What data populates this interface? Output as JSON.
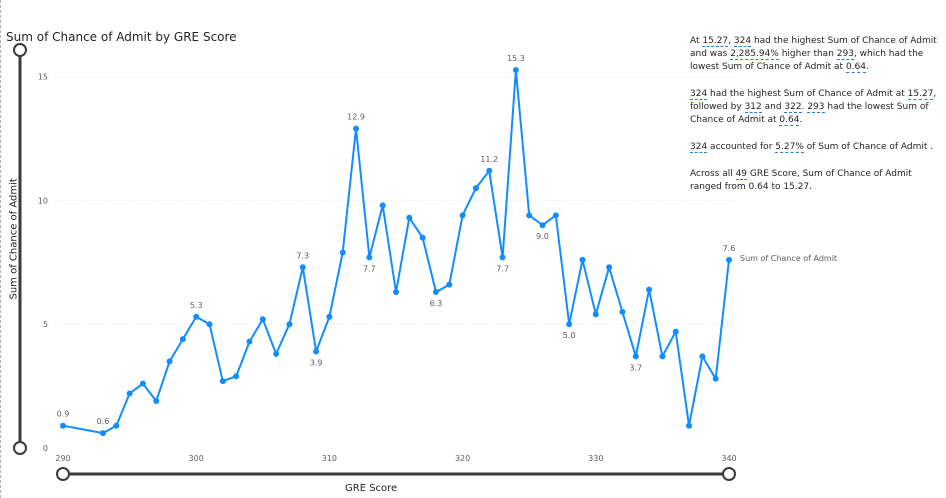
{
  "chart_data": {
    "type": "line",
    "title": "Sum of Chance of Admit by GRE Score",
    "xlabel": "GRE Score",
    "ylabel": "Sum of Chance of Admit",
    "xlim": [
      290,
      340
    ],
    "ylim": [
      0,
      16.2
    ],
    "xticks": [
      "290",
      "300",
      "310",
      "320",
      "330",
      "340"
    ],
    "yticks": [
      "0",
      "5",
      "10",
      "15"
    ],
    "grid": true,
    "series": [
      {
        "name": "Sum of Chance of Admit",
        "color": "#118DFF",
        "points": [
          [
            290,
            0.9
          ],
          [
            293,
            0.6
          ],
          [
            294,
            0.9
          ],
          [
            295,
            2.2
          ],
          [
            296,
            2.6
          ],
          [
            297,
            1.9
          ],
          [
            298,
            3.5
          ],
          [
            299,
            4.4
          ],
          [
            300,
            5.3
          ],
          [
            301,
            5.0
          ],
          [
            302,
            2.7
          ],
          [
            303,
            2.9
          ],
          [
            304,
            4.3
          ],
          [
            305,
            5.2
          ],
          [
            306,
            3.8
          ],
          [
            307,
            5.0
          ],
          [
            308,
            7.3
          ],
          [
            309,
            3.9
          ],
          [
            310,
            5.3
          ],
          [
            311,
            7.9
          ],
          [
            312,
            12.9
          ],
          [
            313,
            7.7
          ],
          [
            314,
            9.8
          ],
          [
            315,
            6.3
          ],
          [
            316,
            9.3
          ],
          [
            317,
            8.5
          ],
          [
            318,
            6.3
          ],
          [
            319,
            6.6
          ],
          [
            320,
            9.4
          ],
          [
            321,
            10.5
          ],
          [
            322,
            11.2
          ],
          [
            323,
            7.7
          ],
          [
            324,
            15.27
          ],
          [
            325,
            9.4
          ],
          [
            326,
            9.0
          ],
          [
            327,
            9.4
          ],
          [
            328,
            5.0
          ],
          [
            329,
            7.6
          ],
          [
            330,
            5.4
          ],
          [
            331,
            7.3
          ],
          [
            332,
            5.5
          ],
          [
            333,
            3.7
          ],
          [
            334,
            6.4
          ],
          [
            335,
            3.7
          ],
          [
            336,
            4.7
          ],
          [
            337,
            0.9
          ],
          [
            338,
            3.7
          ],
          [
            339,
            2.8
          ],
          [
            340,
            7.6
          ]
        ]
      }
    ],
    "data_labels": [
      {
        "x": 290,
        "y": 0.9,
        "text": "0.9",
        "pos": "above"
      },
      {
        "x": 293,
        "y": 0.6,
        "text": "0.6",
        "pos": "above"
      },
      {
        "x": 300,
        "y": 5.3,
        "text": "5.3",
        "pos": "above"
      },
      {
        "x": 308,
        "y": 7.3,
        "text": "7.3",
        "pos": "above"
      },
      {
        "x": 309,
        "y": 3.9,
        "text": "3.9",
        "pos": "below"
      },
      {
        "x": 312,
        "y": 12.9,
        "text": "12.9",
        "pos": "above"
      },
      {
        "x": 313,
        "y": 7.7,
        "text": "7.7",
        "pos": "below"
      },
      {
        "x": 318,
        "y": 6.3,
        "text": "6.3",
        "pos": "below"
      },
      {
        "x": 322,
        "y": 11.2,
        "text": "11.2",
        "pos": "above"
      },
      {
        "x": 323,
        "y": 7.7,
        "text": "7.7",
        "pos": "below"
      },
      {
        "x": 324,
        "y": 15.27,
        "text": "15.3",
        "pos": "above"
      },
      {
        "x": 326,
        "y": 9.0,
        "text": "9.0",
        "pos": "below"
      },
      {
        "x": 328,
        "y": 5.0,
        "text": "5.0",
        "pos": "below"
      },
      {
        "x": 333,
        "y": 3.7,
        "text": "3.7",
        "pos": "below"
      },
      {
        "x": 340,
        "y": 7.6,
        "text": "7.6",
        "pos": "above"
      }
    ],
    "series_end_label": "Sum of Chance of Admit"
  },
  "narrative": {
    "p1": [
      {
        "t": "At "
      },
      {
        "t": "15.27",
        "h": true
      },
      {
        "t": ", "
      },
      {
        "t": "324",
        "h": true
      },
      {
        "t": " had the highest Sum of Chance of Admit and was "
      },
      {
        "t": "2,285.94%",
        "h": true
      },
      {
        "t": " higher than "
      },
      {
        "t": "293",
        "h": true
      },
      {
        "t": ", which had the lowest Sum of Chance of Admit  at "
      },
      {
        "t": "0.64",
        "h": true
      },
      {
        "t": "."
      }
    ],
    "p2": [
      {
        "t": "324",
        "h": true
      },
      {
        "t": " had the highest Sum of Chance of Admit  at "
      },
      {
        "t": "15.27",
        "h": true
      },
      {
        "t": ", followed by "
      },
      {
        "t": "312",
        "h": true
      },
      {
        "t": " and "
      },
      {
        "t": "322",
        "h": true
      },
      {
        "t": ". "
      },
      {
        "t": "293",
        "h": true
      },
      {
        "t": " had the lowest Sum of Chance of Admit  at "
      },
      {
        "t": "0.64",
        "h": true
      },
      {
        "t": "."
      }
    ],
    "p3": [
      {
        "t": "324",
        "h": true
      },
      {
        "t": " accounted for "
      },
      {
        "t": "5.27%",
        "h": true
      },
      {
        "t": " of Sum of Chance of Admit ."
      }
    ],
    "p4": [
      {
        "t": "Across all "
      },
      {
        "t": "49",
        "h": true
      },
      {
        "t": " GRE Score, Sum of Chance of Admit  ranged from 0.64 to 15.27."
      }
    ]
  }
}
